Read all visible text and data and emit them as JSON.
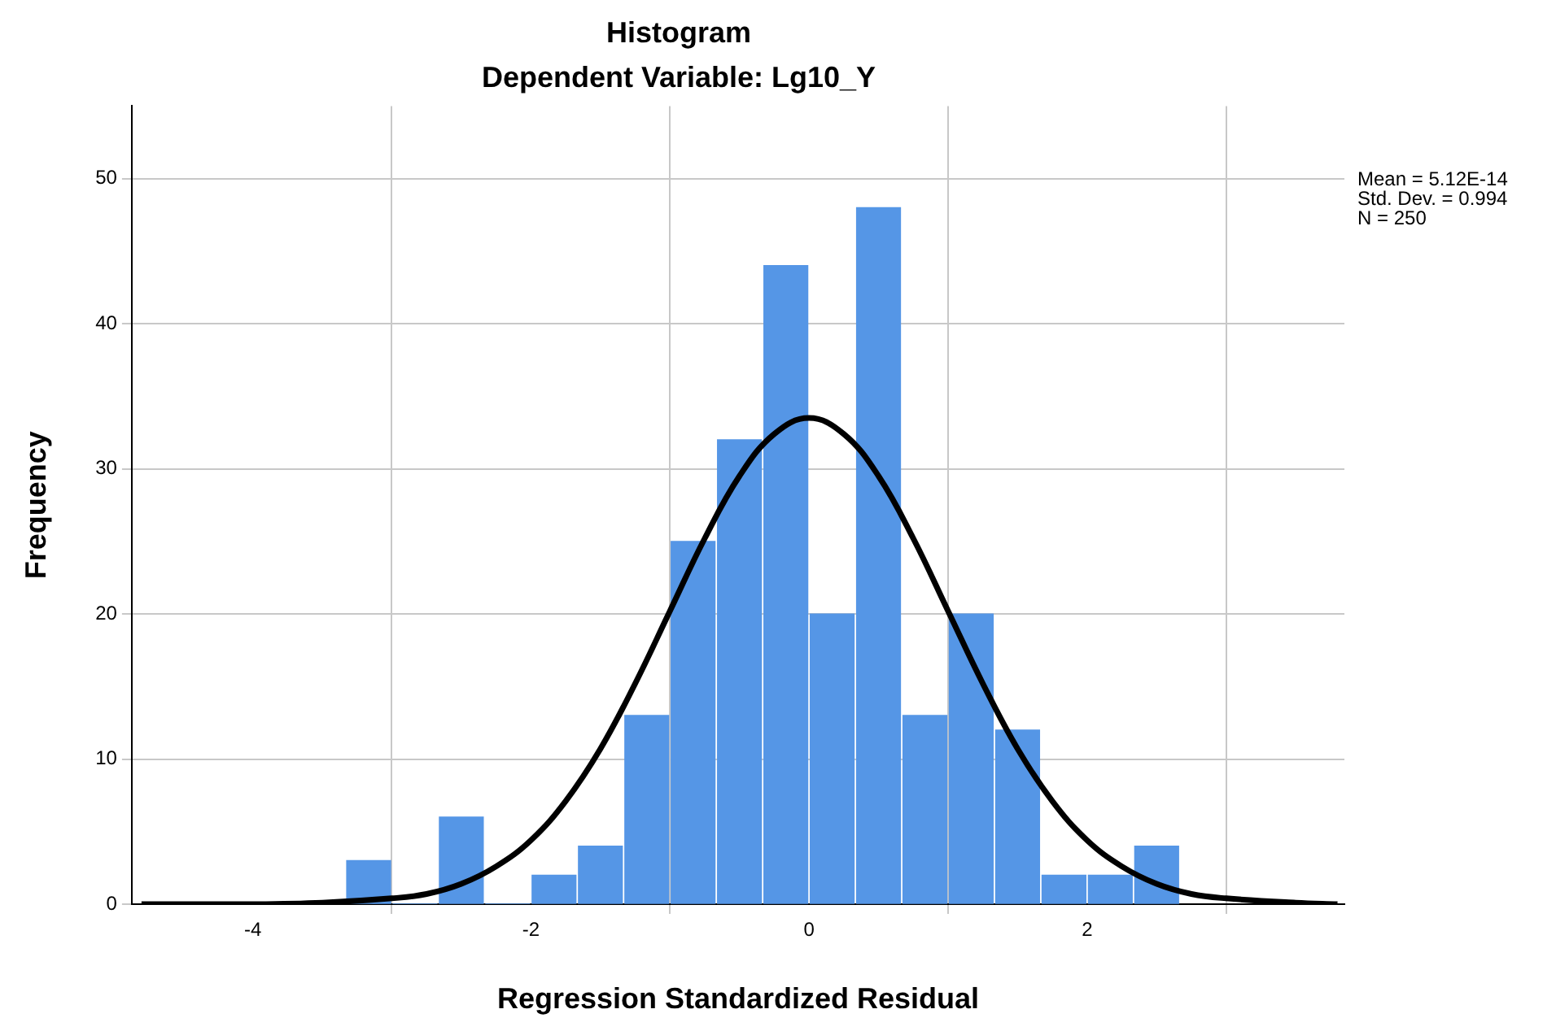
{
  "chart_data": {
    "type": "histogram",
    "title": "Histogram",
    "subtitle": "Dependent Variable: Lg10_Y",
    "xlabel": "Regression Standardized Residual",
    "ylabel": "Frequency",
    "bins": [
      -3.333,
      -3,
      -2.667,
      -2.333,
      -2,
      -1.667,
      -1.333,
      -1,
      -0.667,
      -0.333,
      0,
      0.333,
      0.667,
      1,
      1.333,
      1.667,
      2,
      2.333,
      2.667
    ],
    "values": [
      3,
      0,
      6,
      0,
      2,
      4,
      13,
      25,
      32,
      44,
      20,
      48,
      13,
      20,
      12,
      2,
      2,
      4
    ],
    "color": "#5596e6",
    "xlim": [
      -4.87,
      3.85
    ],
    "xticks": [
      -4,
      -2,
      0,
      2
    ],
    "ylim": [
      0,
      55
    ],
    "yticks": [
      0,
      10,
      20,
      30,
      40,
      50
    ],
    "grid": true,
    "annotations": [
      "Mean = 5.12E-14",
      "Std. Dev. = 0.994",
      "N = 250"
    ],
    "series": [
      {
        "type": "line",
        "color": "#000000",
        "x": [
          -4.8,
          -4,
          -3.5,
          -3,
          -2.75,
          -2.5,
          -2.25,
          -2,
          -1.75,
          -1.5,
          -1.25,
          -1,
          -0.75,
          -0.5,
          -0.25,
          0,
          0.25,
          0.5,
          0.75,
          1,
          1.25,
          1.5,
          1.75,
          2,
          2.25,
          2.5,
          2.75,
          3,
          3.5,
          3.8
        ],
        "values": [
          0,
          0,
          0.1,
          0.4,
          0.7,
          1.4,
          2.6,
          4.4,
          7.1,
          10.7,
          15.2,
          20.2,
          25.2,
          29.5,
          32.4,
          33.5,
          32.4,
          29.5,
          25.2,
          20.2,
          15.2,
          10.7,
          7.1,
          4.4,
          2.6,
          1.4,
          0.7,
          0.4,
          0.1,
          0
        ]
      }
    ]
  }
}
